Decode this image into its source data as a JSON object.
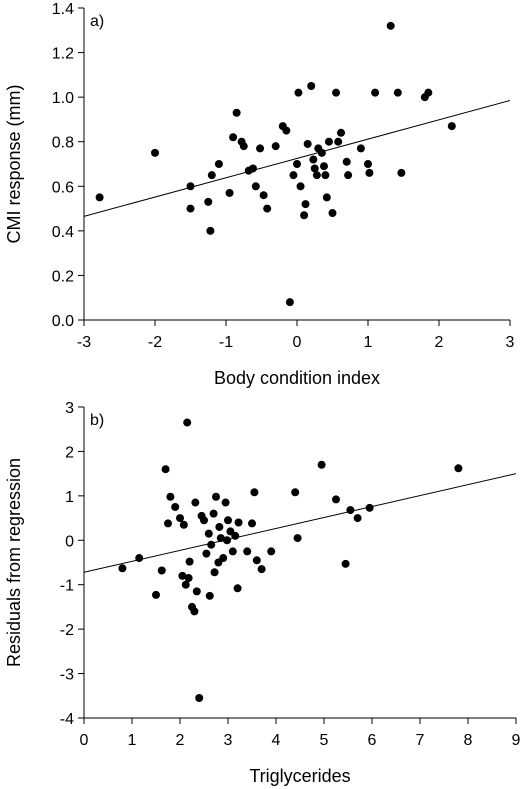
{
  "chart_data": [
    {
      "type": "scatter",
      "panel_label": "a)",
      "xlabel": "Body condition index",
      "ylabel": "CMI response (mm)",
      "xlim": [
        -3,
        3
      ],
      "ylim": [
        0,
        1.4
      ],
      "xticks": [
        "-3",
        "-2",
        "-1",
        "0",
        "1",
        "2",
        "3"
      ],
      "yticks": [
        "0.0",
        "0.2",
        "0.4",
        "0.6",
        "0.8",
        "1.0",
        "1.2",
        "1.4"
      ],
      "grid": false,
      "trendline": [
        [
          -3,
          0.465
        ],
        [
          3,
          0.985
        ]
      ],
      "points": [
        [
          -2.78,
          0.55
        ],
        [
          -2.0,
          0.75
        ],
        [
          -1.5,
          0.6
        ],
        [
          -1.5,
          0.5
        ],
        [
          -1.25,
          0.53
        ],
        [
          -1.22,
          0.4
        ],
        [
          -1.2,
          0.65
        ],
        [
          -1.1,
          0.7
        ],
        [
          -0.95,
          0.57
        ],
        [
          -0.9,
          0.82
        ],
        [
          -0.85,
          0.93
        ],
        [
          -0.78,
          0.8
        ],
        [
          -0.75,
          0.78
        ],
        [
          -0.68,
          0.67
        ],
        [
          -0.62,
          0.68
        ],
        [
          -0.58,
          0.6
        ],
        [
          -0.52,
          0.77
        ],
        [
          -0.47,
          0.56
        ],
        [
          -0.42,
          0.5
        ],
        [
          -0.3,
          0.78
        ],
        [
          -0.2,
          0.87
        ],
        [
          -0.15,
          0.85
        ],
        [
          -0.1,
          0.08
        ],
        [
          -0.05,
          0.65
        ],
        [
          0.0,
          0.7
        ],
        [
          0.02,
          1.02
        ],
        [
          0.05,
          0.6
        ],
        [
          0.1,
          0.47
        ],
        [
          0.12,
          0.52
        ],
        [
          0.15,
          0.79
        ],
        [
          0.2,
          1.05
        ],
        [
          0.23,
          0.72
        ],
        [
          0.25,
          0.68
        ],
        [
          0.28,
          0.65
        ],
        [
          0.3,
          0.77
        ],
        [
          0.35,
          0.75
        ],
        [
          0.38,
          0.69
        ],
        [
          0.4,
          0.65
        ],
        [
          0.42,
          0.55
        ],
        [
          0.45,
          0.8
        ],
        [
          0.5,
          0.48
        ],
        [
          0.55,
          1.02
        ],
        [
          0.58,
          0.8
        ],
        [
          0.62,
          0.84
        ],
        [
          0.7,
          0.71
        ],
        [
          0.72,
          0.65
        ],
        [
          0.9,
          0.77
        ],
        [
          1.0,
          0.7
        ],
        [
          1.02,
          0.66
        ],
        [
          1.1,
          1.02
        ],
        [
          1.32,
          1.32
        ],
        [
          1.42,
          1.02
        ],
        [
          1.47,
          0.66
        ],
        [
          1.8,
          1.0
        ],
        [
          1.85,
          1.02
        ],
        [
          2.18,
          0.87
        ]
      ]
    },
    {
      "type": "scatter",
      "panel_label": "b)",
      "xlabel": "Triglycerides",
      "ylabel": "Residuals from regression",
      "xlim": [
        0,
        9
      ],
      "ylim": [
        -4,
        3
      ],
      "xticks": [
        "0",
        "1",
        "2",
        "3",
        "4",
        "5",
        "6",
        "7",
        "8",
        "9"
      ],
      "yticks": [
        "-4",
        "-3",
        "-2",
        "-1",
        "0",
        "1",
        "2",
        "3"
      ],
      "grid": false,
      "trendline": [
        [
          0,
          -0.72
        ],
        [
          9,
          1.5
        ]
      ],
      "points": [
        [
          0.8,
          -0.63
        ],
        [
          1.15,
          -0.4
        ],
        [
          1.5,
          -1.23
        ],
        [
          1.62,
          -0.68
        ],
        [
          1.7,
          1.6
        ],
        [
          1.75,
          0.38
        ],
        [
          1.8,
          0.98
        ],
        [
          1.9,
          0.75
        ],
        [
          2.0,
          0.5
        ],
        [
          2.05,
          -0.8
        ],
        [
          2.08,
          0.35
        ],
        [
          2.12,
          -1.0
        ],
        [
          2.15,
          2.65
        ],
        [
          2.18,
          -0.85
        ],
        [
          2.2,
          -0.48
        ],
        [
          2.25,
          -1.5
        ],
        [
          2.3,
          -1.6
        ],
        [
          2.32,
          0.85
        ],
        [
          2.35,
          -1.15
        ],
        [
          2.4,
          -3.55
        ],
        [
          2.45,
          0.55
        ],
        [
          2.5,
          0.45
        ],
        [
          2.55,
          -0.3
        ],
        [
          2.6,
          0.15
        ],
        [
          2.62,
          -1.25
        ],
        [
          2.65,
          -0.1
        ],
        [
          2.7,
          0.6
        ],
        [
          2.72,
          -0.72
        ],
        [
          2.75,
          0.98
        ],
        [
          2.8,
          -0.5
        ],
        [
          2.82,
          0.3
        ],
        [
          2.85,
          0.05
        ],
        [
          2.9,
          -0.4
        ],
        [
          2.95,
          0.85
        ],
        [
          2.98,
          0.0
        ],
        [
          3.0,
          0.45
        ],
        [
          3.05,
          0.2
        ],
        [
          3.1,
          -0.25
        ],
        [
          3.15,
          0.1
        ],
        [
          3.2,
          -1.08
        ],
        [
          3.22,
          0.4
        ],
        [
          3.4,
          -0.25
        ],
        [
          3.5,
          0.38
        ],
        [
          3.55,
          1.08
        ],
        [
          3.6,
          -0.45
        ],
        [
          3.7,
          -0.65
        ],
        [
          3.9,
          -0.25
        ],
        [
          4.4,
          1.08
        ],
        [
          4.45,
          0.05
        ],
        [
          4.95,
          1.7
        ],
        [
          5.25,
          0.92
        ],
        [
          5.45,
          -0.53
        ],
        [
          5.55,
          0.68
        ],
        [
          5.7,
          0.5
        ],
        [
          5.95,
          0.73
        ],
        [
          7.8,
          1.62
        ]
      ]
    }
  ]
}
